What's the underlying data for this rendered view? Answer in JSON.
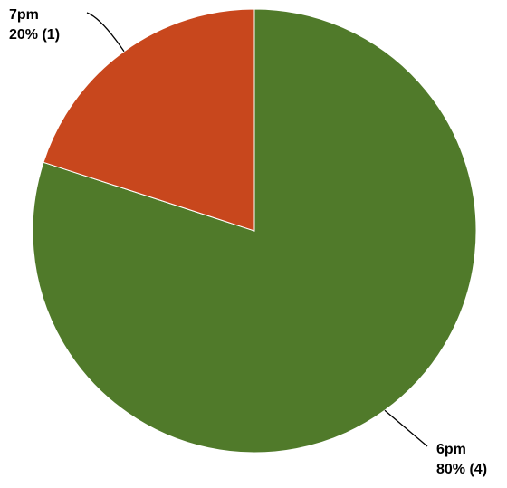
{
  "chart_data": {
    "type": "pie",
    "slices": [
      {
        "label": "6pm",
        "value": 4,
        "percent_label": "80% (4)",
        "color": "#507A2A"
      },
      {
        "label": "7pm",
        "value": 1,
        "percent_label": "20% (1)",
        "color": "#C8471D"
      }
    ],
    "start": "12 o'clock",
    "direction": "clockwise"
  }
}
